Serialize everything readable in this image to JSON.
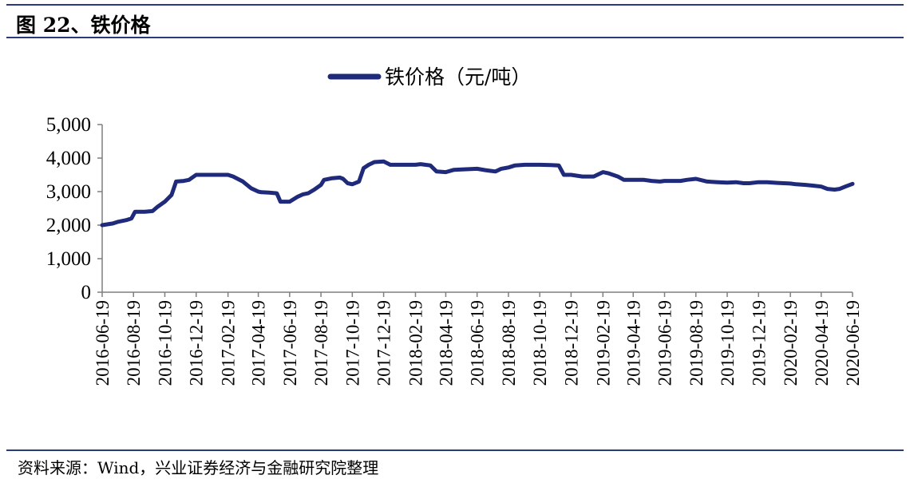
{
  "header": {
    "title": "图  22、铁价格"
  },
  "footer": {
    "source": "资料来源：Wind，兴业证券经济与金融研究院整理"
  },
  "colors": {
    "series": "#1f2a7a",
    "rule": "#2a3a7a",
    "axis": "#7f7f7f"
  },
  "chart_data": {
    "type": "line",
    "title": "",
    "xlabel": "",
    "ylabel": "",
    "ylim": [
      0,
      5000
    ],
    "yticks": [
      "5,000",
      "4,000",
      "3,000",
      "2,000",
      "1,000",
      "0"
    ],
    "xticks": [
      "2016-06-19",
      "2016-08-19",
      "2016-10-19",
      "2016-12-19",
      "2017-02-19",
      "2017-04-19",
      "2017-06-19",
      "2017-08-19",
      "2017-10-19",
      "2017-12-19",
      "2018-02-19",
      "2018-04-19",
      "2018-06-19",
      "2018-08-19",
      "2018-10-19",
      "2018-12-19",
      "2019-02-19",
      "2019-04-19",
      "2019-06-19",
      "2019-08-19",
      "2019-10-19",
      "2019-12-19",
      "2020-02-19",
      "2020-04-19",
      "2020-06-19"
    ],
    "grid": false,
    "legend": "top-center",
    "series": [
      {
        "name": "铁价格（元/吨）",
        "x": [
          "2016-06-19",
          "2016-07-10",
          "2016-07-20",
          "2016-08-05",
          "2016-08-15",
          "2016-08-22",
          "2016-09-10",
          "2016-09-25",
          "2016-10-05",
          "2016-10-19",
          "2016-11-01",
          "2016-11-10",
          "2016-11-25",
          "2016-12-05",
          "2016-12-19",
          "2017-01-20",
          "2017-02-19",
          "2017-03-01",
          "2017-03-20",
          "2017-04-05",
          "2017-04-19",
          "2017-04-25",
          "2017-05-10",
          "2017-05-25",
          "2017-06-01",
          "2017-06-19",
          "2017-07-05",
          "2017-07-15",
          "2017-07-25",
          "2017-08-05",
          "2017-08-19",
          "2017-08-25",
          "2017-09-10",
          "2017-09-25",
          "2017-10-01",
          "2017-10-10",
          "2017-10-19",
          "2017-11-01",
          "2017-11-10",
          "2017-11-20",
          "2017-12-01",
          "2017-12-19",
          "2018-01-01",
          "2018-01-15",
          "2018-02-05",
          "2018-02-19",
          "2018-03-01",
          "2018-03-20",
          "2018-04-01",
          "2018-04-19",
          "2018-05-05",
          "2018-05-20",
          "2018-06-19",
          "2018-07-05",
          "2018-07-15",
          "2018-07-25",
          "2018-08-05",
          "2018-08-19",
          "2018-09-01",
          "2018-09-20",
          "2018-10-19",
          "2018-11-10",
          "2018-11-25",
          "2018-12-05",
          "2018-12-19",
          "2019-01-10",
          "2019-02-01",
          "2019-02-19",
          "2019-03-01",
          "2019-03-20",
          "2019-04-01",
          "2019-04-19",
          "2019-05-10",
          "2019-05-25",
          "2019-06-10",
          "2019-06-19",
          "2019-07-01",
          "2019-07-20",
          "2019-08-01",
          "2019-08-19",
          "2019-09-10",
          "2019-10-01",
          "2019-10-19",
          "2019-11-05",
          "2019-11-20",
          "2019-12-01",
          "2019-12-19",
          "2020-01-05",
          "2020-01-25",
          "2020-02-19",
          "2020-03-01",
          "2020-03-20",
          "2020-04-01",
          "2020-04-19",
          "2020-05-01",
          "2020-05-15",
          "2020-05-25",
          "2020-06-05",
          "2020-06-19"
        ],
        "values": [
          2000,
          2050,
          2100,
          2150,
          2200,
          2400,
          2400,
          2420,
          2550,
          2700,
          2900,
          3300,
          3320,
          3350,
          3500,
          3500,
          3500,
          3450,
          3300,
          3100,
          3000,
          2980,
          2970,
          2950,
          2700,
          2700,
          2850,
          2920,
          2950,
          3050,
          3200,
          3350,
          3400,
          3420,
          3380,
          3250,
          3220,
          3300,
          3700,
          3800,
          3880,
          3900,
          3800,
          3800,
          3800,
          3800,
          3820,
          3780,
          3600,
          3580,
          3650,
          3660,
          3680,
          3640,
          3620,
          3600,
          3680,
          3720,
          3780,
          3800,
          3800,
          3790,
          3780,
          3500,
          3500,
          3450,
          3450,
          3580,
          3550,
          3450,
          3350,
          3350,
          3350,
          3320,
          3300,
          3320,
          3320,
          3320,
          3350,
          3380,
          3300,
          3280,
          3270,
          3280,
          3250,
          3250,
          3280,
          3280,
          3260,
          3240,
          3220,
          3200,
          3180,
          3150,
          3080,
          3060,
          3080,
          3150,
          3230
        ]
      }
    ]
  }
}
